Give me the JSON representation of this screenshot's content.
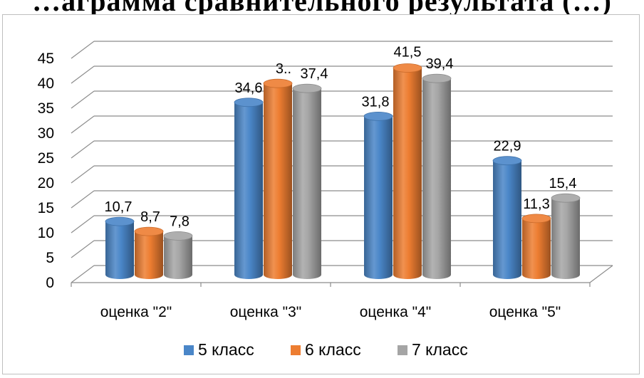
{
  "title_fragment": "…аграмма сравнительного результата (…)",
  "chart_data": {
    "type": "bar",
    "categories": [
      "оценка \"2\"",
      "оценка \"3\"",
      "оценка \"4\"",
      "оценка \"5\""
    ],
    "series": [
      {
        "name": "5 класс",
        "values": [
          10.7,
          34.6,
          31.8,
          22.9
        ],
        "labels": [
          "10,7",
          "34,6",
          "31,8",
          "22,9"
        ],
        "color": "#4A86C8"
      },
      {
        "name": "6 класс",
        "values": [
          8.7,
          38.4,
          41.5,
          11.3
        ],
        "labels": [
          "8,7",
          "3..",
          "41,5",
          "11,3"
        ],
        "color": "#ED7D31"
      },
      {
        "name": "7 класс",
        "values": [
          7.8,
          37.4,
          39.4,
          15.4
        ],
        "labels": [
          "7,8",
          "37,4",
          "39,4",
          "15,4"
        ],
        "color": "#A5A5A5"
      }
    ],
    "yticks": [
      "0",
      "5",
      "10",
      "15",
      "20",
      "25",
      "30",
      "35",
      "40",
      "45"
    ],
    "ylim": [
      0,
      45
    ],
    "grid": true,
    "legend_position": "bottom",
    "style": "3d-cylinder"
  }
}
